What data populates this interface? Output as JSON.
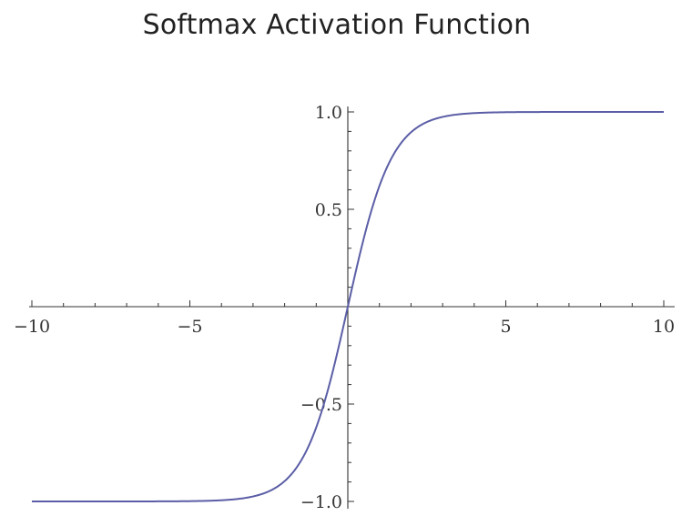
{
  "chart_data": {
    "type": "line",
    "title": "Softmax Activation Function",
    "xlabel": "",
    "ylabel": "",
    "xlim": [
      -10,
      10
    ],
    "ylim": [
      -1,
      1
    ],
    "x_ticks": [
      -10,
      -5,
      5,
      10
    ],
    "x_tick_labels": [
      "−10",
      "−5",
      "5",
      "10"
    ],
    "y_ticks": [
      1.0,
      0.5,
      -0.5,
      -1.0
    ],
    "y_tick_labels": [
      "1.0",
      "0.5",
      "−0.5",
      "−1.0"
    ],
    "grid": false,
    "legend": "none",
    "series": [
      {
        "color": "#5b5ea6",
        "x": [
          -10,
          -8,
          -6,
          -5,
          -4,
          -3,
          -2.5,
          -2,
          -1.5,
          -1,
          -0.5,
          0,
          0.5,
          1,
          1.5,
          2,
          2.5,
          3,
          4,
          5,
          6,
          8,
          10
        ],
        "y": [
          -1.0,
          -1.0,
          -0.999,
          -0.998,
          -0.993,
          -0.98,
          -0.964,
          -0.935,
          -0.885,
          -0.79,
          -0.62,
          0.0,
          0.62,
          0.79,
          0.885,
          0.935,
          0.964,
          0.98,
          0.993,
          0.998,
          0.999,
          1.0,
          1.0
        ]
      }
    ]
  },
  "colors": {
    "axis": "#333333",
    "curve": "#5b5ea6"
  }
}
